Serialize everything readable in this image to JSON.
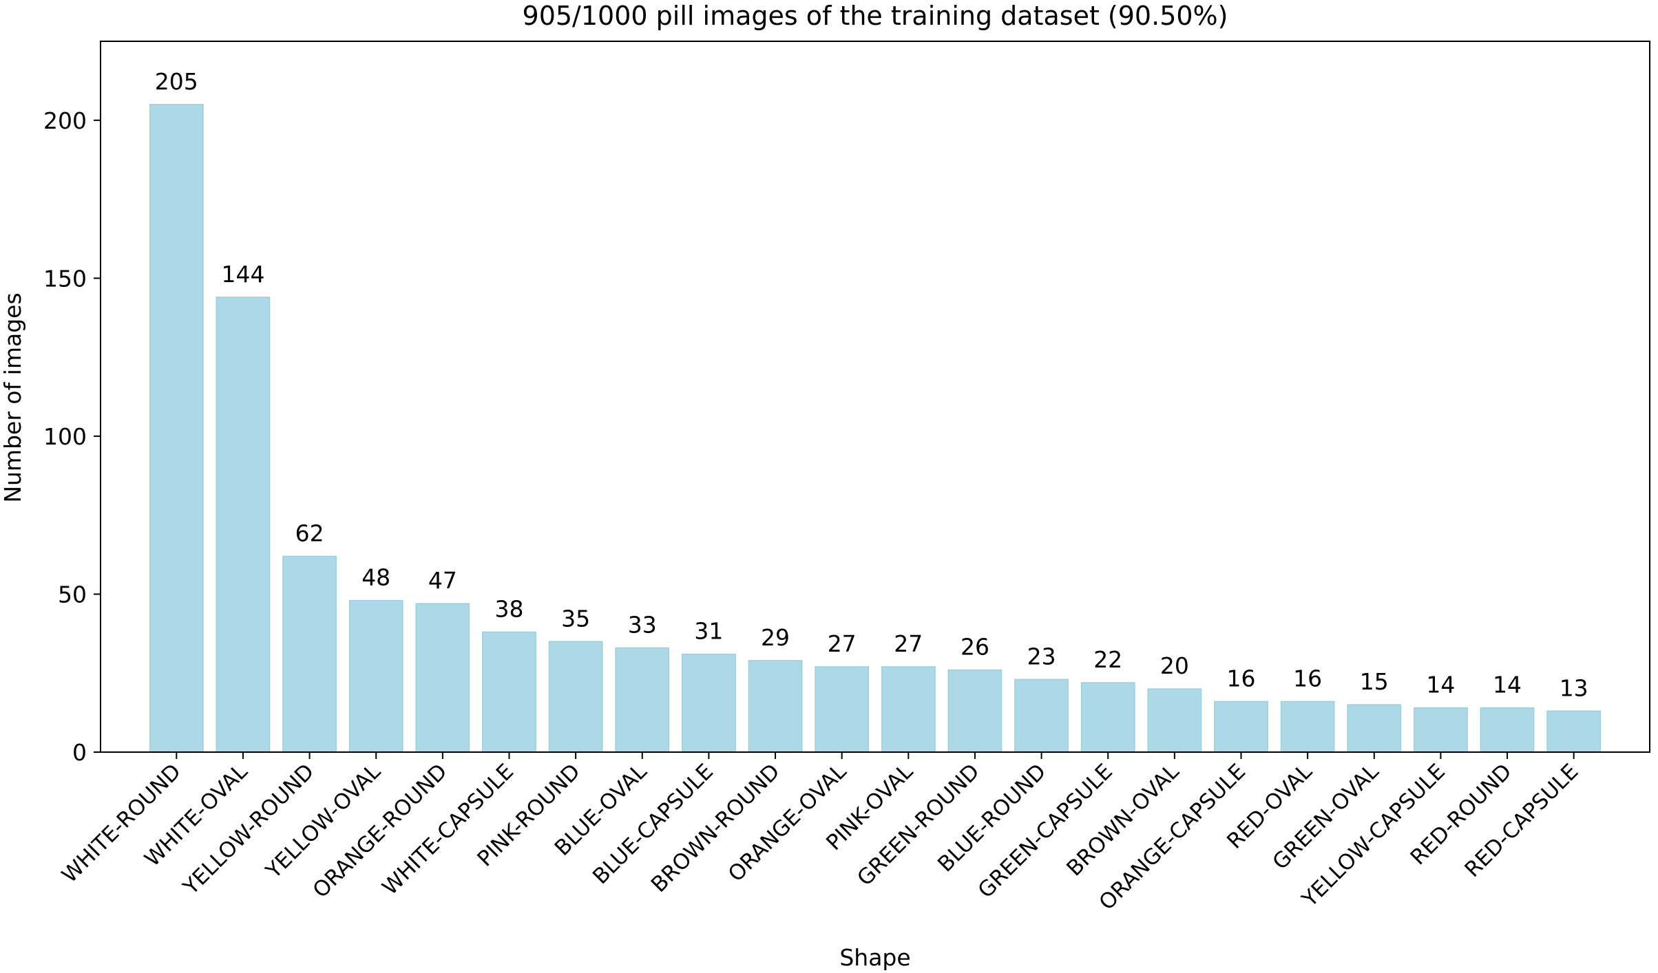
{
  "chart_data": {
    "type": "bar",
    "title": "905/1000 pill images of the training dataset (90.50%)",
    "xlabel": "Shape",
    "ylabel": "Number of images",
    "ylim": [
      0,
      225
    ],
    "yticks": [
      0,
      50,
      100,
      150,
      200
    ],
    "grid": false,
    "bar_color": "#add8e6",
    "categories": [
      "WHITE-ROUND",
      "WHITE-OVAL",
      "YELLOW-ROUND",
      "YELLOW-OVAL",
      "ORANGE-ROUND",
      "WHITE-CAPSULE",
      "PINK-ROUND",
      "BLUE-OVAL",
      "BLUE-CAPSULE",
      "BROWN-ROUND",
      "ORANGE-OVAL",
      "PINK-OVAL",
      "GREEN-ROUND",
      "BLUE-ROUND",
      "GREEN-CAPSULE",
      "BROWN-OVAL",
      "ORANGE-CAPSULE",
      "RED-OVAL",
      "GREEN-OVAL",
      "YELLOW-CAPSULE",
      "RED-ROUND",
      "RED-CAPSULE"
    ],
    "values": [
      205,
      144,
      62,
      48,
      47,
      38,
      35,
      33,
      31,
      29,
      27,
      27,
      26,
      23,
      22,
      20,
      16,
      16,
      15,
      14,
      14,
      13
    ],
    "data_labels": [
      "205",
      "144",
      "62",
      "48",
      "47",
      "38",
      "35",
      "33",
      "31",
      "29",
      "27",
      "27",
      "26",
      "23",
      "22",
      "20",
      "16",
      "16",
      "15",
      "14",
      "14",
      "13"
    ]
  }
}
